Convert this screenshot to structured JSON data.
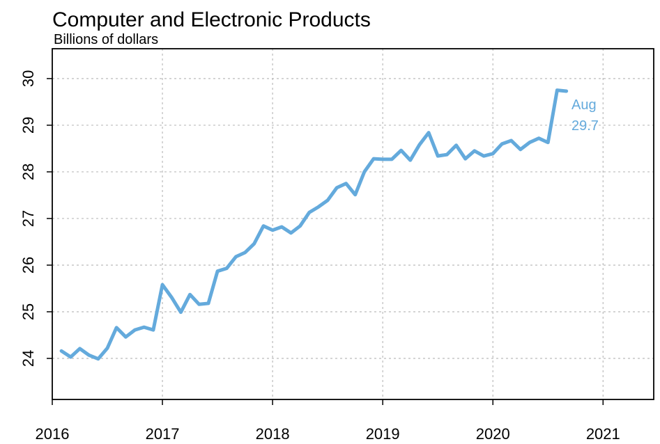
{
  "chart_data": {
    "type": "line",
    "title": "Computer and Electronic Products",
    "subtitle": "Billions of dollars",
    "annotation": [
      "Aug",
      "29.7"
    ],
    "x": [
      2016.083,
      2016.167,
      2016.25,
      2016.333,
      2016.417,
      2016.5,
      2016.583,
      2016.667,
      2016.75,
      2016.833,
      2016.917,
      2017,
      2017.083,
      2017.167,
      2017.25,
      2017.333,
      2017.417,
      2017.5,
      2017.583,
      2017.667,
      2017.75,
      2017.833,
      2017.917,
      2018,
      2018.083,
      2018.167,
      2018.25,
      2018.333,
      2018.417,
      2018.5,
      2018.583,
      2018.667,
      2018.75,
      2018.833,
      2018.917,
      2019,
      2019.083,
      2019.167,
      2019.25,
      2019.333,
      2019.417,
      2019.5,
      2019.583,
      2019.667,
      2019.75,
      2019.833,
      2019.917,
      2020,
      2020.083,
      2020.167,
      2020.25,
      2020.333,
      2020.417,
      2020.5,
      2020.583,
      2020.667
    ],
    "series": [
      {
        "name": "Computer and Electronic Products",
        "color": "#64aadc",
        "values": [
          24.16,
          24.03,
          24.21,
          24.07,
          23.99,
          24.22,
          24.66,
          24.46,
          24.61,
          24.67,
          24.61,
          25.58,
          25.31,
          24.99,
          25.37,
          25.16,
          25.18,
          25.87,
          25.93,
          26.18,
          26.27,
          26.46,
          26.84,
          26.75,
          26.82,
          26.69,
          26.84,
          27.13,
          27.25,
          27.39,
          27.66,
          27.75,
          27.51,
          28.0,
          28.28,
          28.27,
          28.27,
          28.46,
          28.25,
          28.58,
          28.84,
          28.34,
          28.37,
          28.57,
          28.28,
          28.45,
          28.34,
          28.39,
          28.6,
          28.67,
          28.48,
          28.63,
          28.72,
          28.63,
          29.75,
          29.73
        ]
      }
    ],
    "xlim": [
      2016,
      2021.46
    ],
    "xticks": [
      2016,
      2017,
      2018,
      2019,
      2020,
      2021
    ],
    "ylim": [
      23.12,
      30.64
    ],
    "yticks": [
      24,
      25,
      26,
      27,
      28,
      29,
      30
    ],
    "grid": true
  }
}
